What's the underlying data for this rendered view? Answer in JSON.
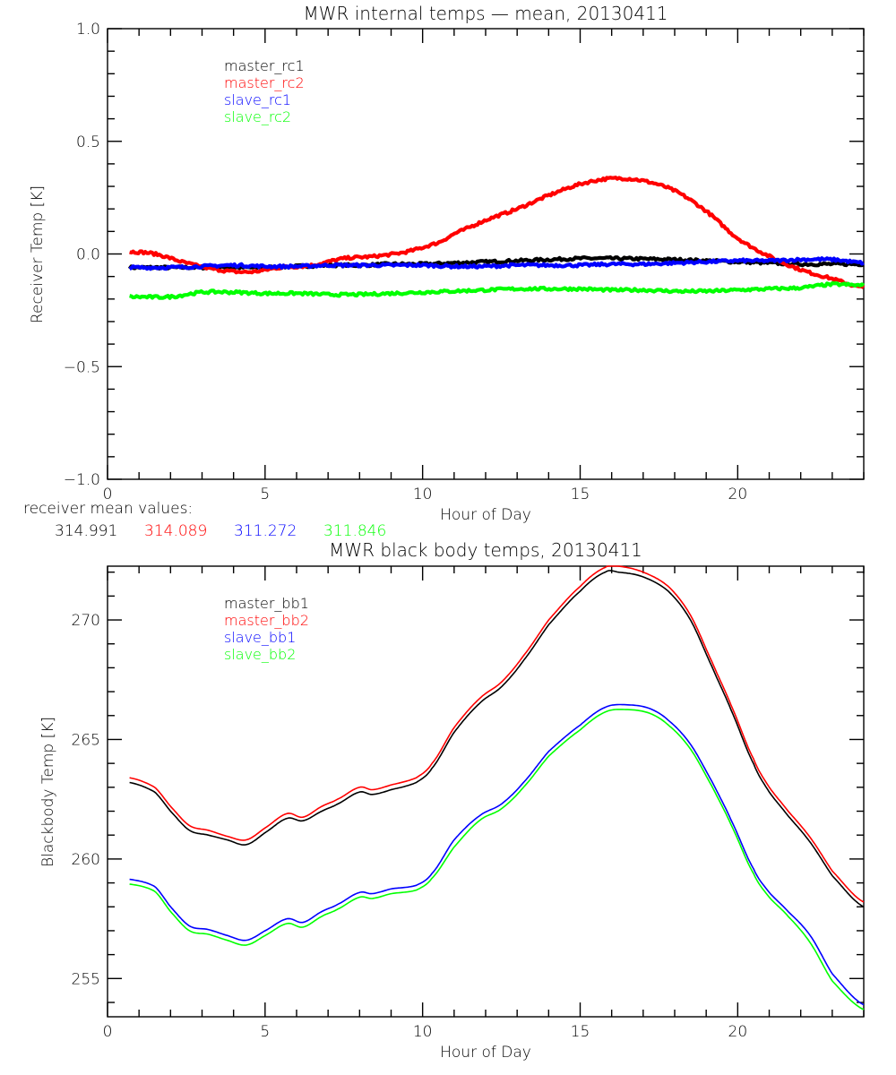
{
  "chart_data": [
    {
      "type": "line",
      "title": "MWR internal temps — mean, 20130411",
      "xlabel": "Hour of Day",
      "ylabel": "Receiver Temp [K]",
      "xlim": [
        0,
        24
      ],
      "ylim": [
        -1.0,
        1.0
      ],
      "xticks": [
        0,
        5,
        10,
        15,
        20
      ],
      "xtick_labels": [
        "0",
        "5",
        "10",
        "15",
        "20"
      ],
      "yticks": [
        -1.0,
        -0.5,
        0.0,
        0.5,
        1.0
      ],
      "ytick_labels": [
        "−1.0",
        "−0.5",
        "0.0",
        "0.5",
        "1.0"
      ],
      "legend_position": "top-left",
      "note_label": "receiver mean values:",
      "series": [
        {
          "name": "master_rc1",
          "color": "#000000",
          "mean_value": "314.991",
          "x": [
            0.7,
            2,
            3,
            4,
            5,
            6,
            7,
            8,
            9,
            10,
            11,
            12,
            13,
            14,
            15,
            16,
            17,
            18,
            19,
            20,
            21,
            22,
            23,
            24
          ],
          "y": [
            -0.06,
            -0.06,
            -0.06,
            -0.06,
            -0.06,
            -0.055,
            -0.05,
            -0.05,
            -0.045,
            -0.045,
            -0.04,
            -0.035,
            -0.03,
            -0.025,
            -0.02,
            -0.02,
            -0.022,
            -0.025,
            -0.03,
            -0.035,
            -0.04,
            -0.045,
            -0.045,
            -0.045
          ]
        },
        {
          "name": "master_rc2",
          "color": "#ff0000",
          "mean_value": "314.089",
          "x": [
            0.7,
            1.5,
            2.5,
            3.5,
            4.5,
            5.5,
            6.5,
            7.5,
            8.5,
            9.5,
            10.5,
            11.0,
            12,
            13,
            14,
            15,
            16,
            17,
            18,
            19,
            20,
            21,
            22,
            23,
            24
          ],
          "y": [
            0.01,
            0.0,
            -0.04,
            -0.07,
            -0.08,
            -0.06,
            -0.05,
            -0.02,
            -0.01,
            0.01,
            0.05,
            0.09,
            0.15,
            0.2,
            0.26,
            0.31,
            0.335,
            0.325,
            0.28,
            0.19,
            0.07,
            -0.01,
            -0.07,
            -0.11,
            -0.15
          ]
        },
        {
          "name": "slave_rc1",
          "color": "#0000ff",
          "mean_value": "311.272",
          "x": [
            0.7,
            2,
            3,
            4,
            5,
            6,
            7,
            8,
            9,
            10,
            11,
            12,
            13,
            14,
            15,
            16,
            17,
            18,
            19,
            20,
            21,
            22,
            23,
            24
          ],
          "y": [
            -0.06,
            -0.06,
            -0.055,
            -0.05,
            -0.055,
            -0.055,
            -0.05,
            -0.05,
            -0.05,
            -0.05,
            -0.055,
            -0.055,
            -0.05,
            -0.05,
            -0.05,
            -0.045,
            -0.045,
            -0.04,
            -0.035,
            -0.03,
            -0.03,
            -0.025,
            -0.025,
            -0.04
          ]
        },
        {
          "name": "slave_rc2",
          "color": "#00ff00",
          "mean_value": "311.846",
          "x": [
            0.7,
            2,
            3,
            4,
            5,
            6,
            7,
            8,
            9,
            10,
            11,
            12,
            13,
            14,
            15,
            16,
            17,
            18,
            19,
            20,
            21,
            22,
            23,
            24
          ],
          "y": [
            -0.19,
            -0.19,
            -0.17,
            -0.17,
            -0.175,
            -0.175,
            -0.18,
            -0.18,
            -0.175,
            -0.17,
            -0.165,
            -0.16,
            -0.155,
            -0.155,
            -0.155,
            -0.16,
            -0.16,
            -0.165,
            -0.165,
            -0.16,
            -0.155,
            -0.15,
            -0.135,
            -0.14
          ]
        }
      ]
    },
    {
      "type": "line",
      "title": "MWR black body temps, 20130411",
      "xlabel": "Hour of Day",
      "ylabel": "Blackbody Temp [K]",
      "xlim": [
        0,
        24
      ],
      "ylim": [
        253.4,
        272.25
      ],
      "xticks": [
        0,
        5,
        10,
        15,
        20
      ],
      "xtick_labels": [
        "0",
        "5",
        "10",
        "15",
        "20"
      ],
      "yticks": [
        255,
        260,
        265,
        270
      ],
      "ytick_labels": [
        "255",
        "260",
        "265",
        "270"
      ],
      "legend_position": "top-left",
      "series": [
        {
          "name": "master_bb1",
          "color": "#000000",
          "x": [
            0.7,
            1.5,
            2.0,
            2.6,
            3.2,
            3.8,
            4.4,
            5.0,
            5.7,
            6.2,
            6.8,
            7.3,
            8.0,
            8.4,
            9.0,
            9.8,
            10.3,
            11.0,
            11.8,
            12.5,
            13.2,
            14.0,
            15.0,
            15.8,
            16.2,
            17.0,
            17.8,
            18.5,
            19.2,
            19.8,
            20.5,
            21.0,
            21.6,
            22.3,
            23.0,
            24.0
          ],
          "y": [
            263.2,
            262.8,
            262.0,
            261.2,
            261.0,
            260.8,
            260.6,
            261.1,
            261.7,
            261.6,
            262.0,
            262.3,
            262.8,
            262.7,
            262.9,
            263.2,
            263.8,
            265.3,
            266.5,
            267.2,
            268.3,
            269.8,
            271.2,
            272.0,
            272.0,
            271.8,
            271.2,
            270.0,
            268.0,
            266.2,
            264.0,
            262.8,
            261.8,
            260.7,
            259.3,
            258.0
          ]
        },
        {
          "name": "master_bb2",
          "color": "#ff0000",
          "x": [
            0.7,
            1.5,
            2.0,
            2.6,
            3.2,
            3.8,
            4.4,
            5.0,
            5.7,
            6.2,
            6.8,
            7.3,
            8.0,
            8.4,
            9.0,
            9.8,
            10.3,
            11.0,
            11.8,
            12.5,
            13.2,
            14.0,
            15.0,
            15.8,
            16.2,
            17.0,
            17.8,
            18.5,
            19.2,
            19.8,
            20.5,
            21.0,
            21.6,
            22.3,
            23.0,
            24.0
          ],
          "y": [
            263.4,
            263.0,
            262.2,
            261.4,
            261.2,
            260.95,
            260.8,
            261.3,
            261.9,
            261.75,
            262.2,
            262.5,
            263.0,
            262.9,
            263.1,
            263.4,
            264.0,
            265.5,
            266.7,
            267.4,
            268.5,
            270.0,
            271.4,
            272.2,
            272.25,
            272.0,
            271.4,
            270.2,
            268.2,
            266.4,
            264.2,
            263.0,
            262.0,
            260.9,
            259.5,
            258.2
          ]
        },
        {
          "name": "slave_bb1",
          "color": "#0000ff",
          "x": [
            0.7,
            1.5,
            2.0,
            2.6,
            3.2,
            3.8,
            4.4,
            5.0,
            5.7,
            6.2,
            6.8,
            7.3,
            8.0,
            8.4,
            9.0,
            9.8,
            10.3,
            11.0,
            11.8,
            12.5,
            13.2,
            14.0,
            15.0,
            15.8,
            16.5,
            17.2,
            17.8,
            18.5,
            19.2,
            19.8,
            20.5,
            21.0,
            21.6,
            22.3,
            23.0,
            24.0
          ],
          "y": [
            259.15,
            258.85,
            258.0,
            257.2,
            257.05,
            256.8,
            256.6,
            257.0,
            257.5,
            257.35,
            257.8,
            258.1,
            258.6,
            258.55,
            258.75,
            258.9,
            259.4,
            260.8,
            261.8,
            262.3,
            263.2,
            264.5,
            265.6,
            266.35,
            266.45,
            266.3,
            265.8,
            264.8,
            263.2,
            261.6,
            259.6,
            258.6,
            257.8,
            256.8,
            255.2,
            253.9
          ]
        },
        {
          "name": "slave_bb2",
          "color": "#00ff00",
          "x": [
            0.7,
            1.5,
            2.0,
            2.6,
            3.2,
            3.8,
            4.4,
            5.0,
            5.7,
            6.2,
            6.8,
            7.3,
            8.0,
            8.4,
            9.0,
            9.8,
            10.3,
            11.0,
            11.8,
            12.5,
            13.2,
            14.0,
            15.0,
            15.8,
            16.5,
            17.2,
            17.8,
            18.5,
            19.2,
            19.8,
            20.5,
            21.0,
            21.6,
            22.3,
            23.0,
            24.0
          ],
          "y": [
            258.95,
            258.65,
            257.8,
            257.0,
            256.85,
            256.6,
            256.4,
            256.8,
            257.3,
            257.15,
            257.6,
            257.9,
            258.4,
            258.35,
            258.55,
            258.7,
            259.2,
            260.5,
            261.6,
            262.1,
            263.0,
            264.3,
            265.4,
            266.15,
            266.25,
            266.1,
            265.6,
            264.6,
            263.0,
            261.4,
            259.4,
            258.4,
            257.6,
            256.5,
            254.9,
            253.7
          ]
        }
      ]
    }
  ]
}
